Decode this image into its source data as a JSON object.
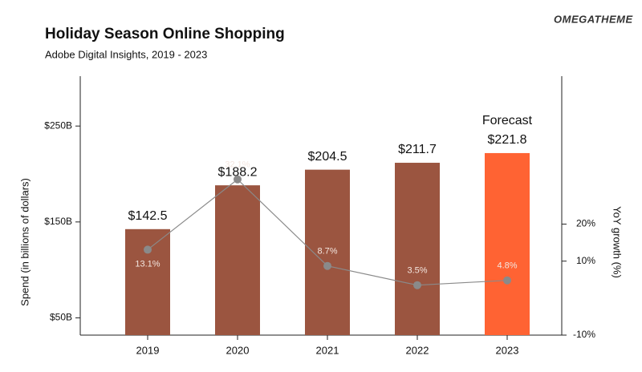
{
  "brand": "OMEGATHEME",
  "chart_data": {
    "type": "bar",
    "title": "Holiday Season Online Shopping",
    "subtitle": "Adobe Digital Insights, 2019 - 2023",
    "y_label": "Spend (in billions of dollars)",
    "y2_label": "YoY growth (%)",
    "annotation": "Forecast",
    "categories": [
      "2019",
      "2020",
      "2021",
      "2022",
      "2023"
    ],
    "series": [
      {
        "type": "bar",
        "colors": [
          "#9b5540",
          "#9b5540",
          "#9b5540",
          "#9b5540",
          "#ff6333"
        ],
        "values": [
          142.5,
          188.2,
          204.5,
          211.7,
          221.8
        ],
        "value_labels": [
          "$142.5",
          "$188.2",
          "$204.5",
          "$211.7",
          "$221.8"
        ]
      },
      {
        "type": "line",
        "axis": "y2",
        "color": "#8a8a8a",
        "values": [
          13.1,
          32.1,
          8.7,
          3.5,
          4.8
        ],
        "value_labels": [
          "13.1%",
          "32.1%",
          "8.7%",
          "3.5%",
          "4.8%"
        ]
      }
    ],
    "ylim": [
      32,
      302
    ],
    "yticks": [
      {
        "value": 50,
        "label": "$50B"
      },
      {
        "value": 150,
        "label": "$150B"
      },
      {
        "value": 250,
        "label": "$250B"
      }
    ],
    "y2lim": [
      -10,
      60
    ],
    "y2ticks": [
      {
        "value": -10,
        "label": "-10%"
      },
      {
        "value": 10,
        "label": "10%"
      },
      {
        "value": 20,
        "label": "20%"
      }
    ]
  }
}
